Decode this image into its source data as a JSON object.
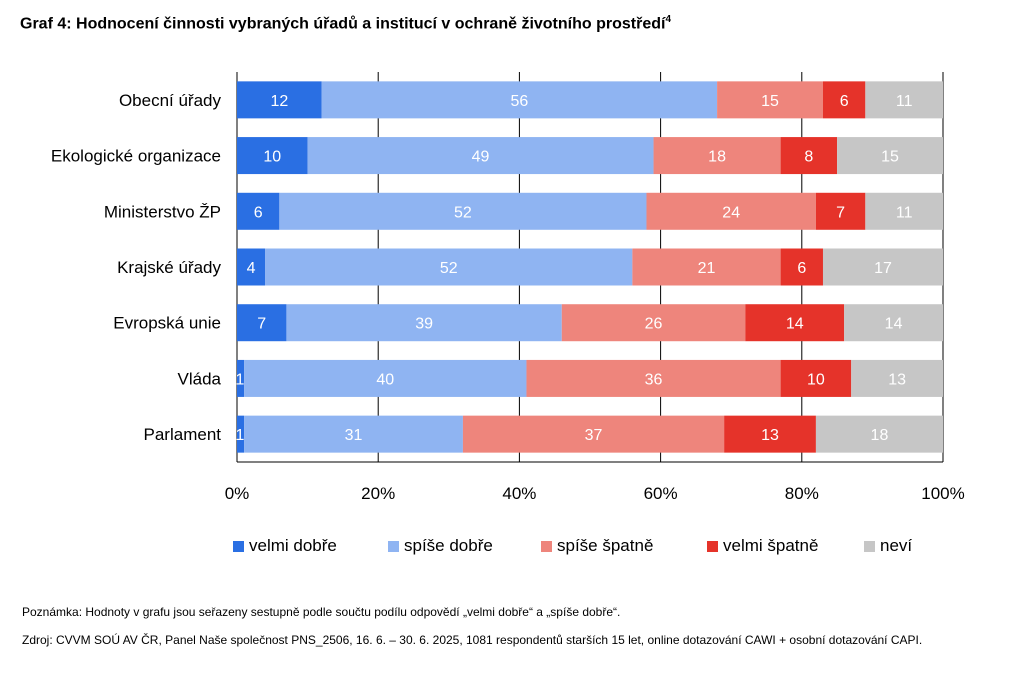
{
  "title": "Graf 4: Hodnocení činnosti vybraných úřadů a institucí v ochraně životního prostředí",
  "title_sup": "4",
  "chart_data": {
    "type": "bar",
    "orientation": "horizontal",
    "stacked": true,
    "categories": [
      "Obecní úřady",
      "Ekologické organizace",
      "Ministerstvo ŽP",
      "Krajské úřady",
      "Evropská unie",
      "Vláda",
      "Parlament"
    ],
    "series": [
      {
        "name": "velmi dobře",
        "color": "#2a6fe3",
        "values": [
          12,
          10,
          6,
          4,
          7,
          1,
          1
        ]
      },
      {
        "name": "spíše dobře",
        "color": "#8fb4f2",
        "values": [
          56,
          49,
          52,
          52,
          39,
          40,
          31
        ]
      },
      {
        "name": "spíše špatně",
        "color": "#ee857c",
        "values": [
          15,
          18,
          24,
          21,
          26,
          36,
          37
        ]
      },
      {
        "name": "velmi špatně",
        "color": "#e5332a",
        "values": [
          6,
          8,
          7,
          6,
          14,
          10,
          13
        ]
      },
      {
        "name": "neví",
        "color": "#c6c6c6",
        "values": [
          11,
          15,
          11,
          17,
          14,
          13,
          18
        ]
      }
    ],
    "xlim": [
      0,
      100
    ],
    "x_ticks": [
      "0%",
      "20%",
      "40%",
      "60%",
      "80%",
      "100%"
    ],
    "grid": true,
    "legend_position": "bottom"
  },
  "notes": [
    "Poznámka: Hodnoty v grafu jsou seřazeny sestupně podle součtu podílu odpovědí „velmi dobře“ a „spíše dobře“.",
    "Zdroj: CVVM SOÚ AV ČR, Panel Naše společnost PNS_2506, 16. 6. – 30. 6. 2025, 1081 respondentů starších 15 let, online dotazování CAWI + osobní dotazování CAPI."
  ]
}
